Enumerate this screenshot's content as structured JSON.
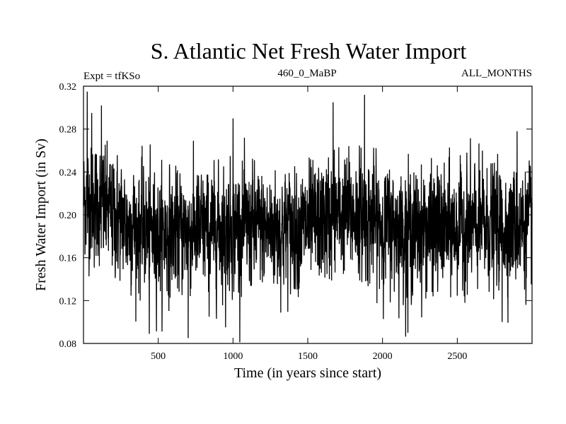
{
  "chart_data": {
    "type": "line",
    "title": "S. Atlantic Net Fresh Water Import",
    "subtitle_left": "Expt = tfKSo",
    "subtitle_center": "460_0_MaBP",
    "subtitle_right": "ALL_MONTHS",
    "xlabel": "Time (in years since start)",
    "ylabel": "Fresh Water Import (in Sv)",
    "xlim": [
      0,
      3000
    ],
    "ylim": [
      0.08,
      0.32
    ],
    "x_ticks": [
      500,
      1000,
      1500,
      2000,
      2500
    ],
    "x_tick_labels": [
      "500",
      "1000",
      "1500",
      "2000",
      "2500"
    ],
    "y_ticks": [
      0.08,
      0.12,
      0.16,
      0.2,
      0.24,
      0.28,
      0.32
    ],
    "y_tick_labels": [
      "0.08",
      "0.12",
      "0.16",
      "0.20",
      "0.24",
      "0.28",
      "0.32"
    ],
    "series": [
      {
        "name": "Net fresh water import",
        "color": "#000000",
        "n_points": 3000,
        "mean_profile": [
          [
            0,
            0.215
          ],
          [
            150,
            0.205
          ],
          [
            300,
            0.19
          ],
          [
            500,
            0.182
          ],
          [
            700,
            0.185
          ],
          [
            1000,
            0.188
          ],
          [
            1300,
            0.186
          ],
          [
            1550,
            0.19
          ],
          [
            1700,
            0.2
          ],
          [
            1850,
            0.2
          ],
          [
            2000,
            0.19
          ],
          [
            2300,
            0.185
          ],
          [
            2700,
            0.19
          ],
          [
            3000,
            0.19
          ]
        ],
        "noise_std": 0.027,
        "extremes": [
          {
            "x": 25,
            "y": 0.315
          },
          {
            "x": 55,
            "y": 0.295
          },
          {
            "x": 120,
            "y": 0.302
          },
          {
            "x": 440,
            "y": 0.089
          },
          {
            "x": 700,
            "y": 0.085
          },
          {
            "x": 840,
            "y": 0.105
          },
          {
            "x": 950,
            "y": 0.095
          },
          {
            "x": 1000,
            "y": 0.29
          },
          {
            "x": 1670,
            "y": 0.305
          },
          {
            "x": 1880,
            "y": 0.312
          },
          {
            "x": 2170,
            "y": 0.09
          },
          {
            "x": 2800,
            "y": 0.1
          },
          {
            "x": 2900,
            "y": 0.278
          }
        ]
      }
    ]
  }
}
